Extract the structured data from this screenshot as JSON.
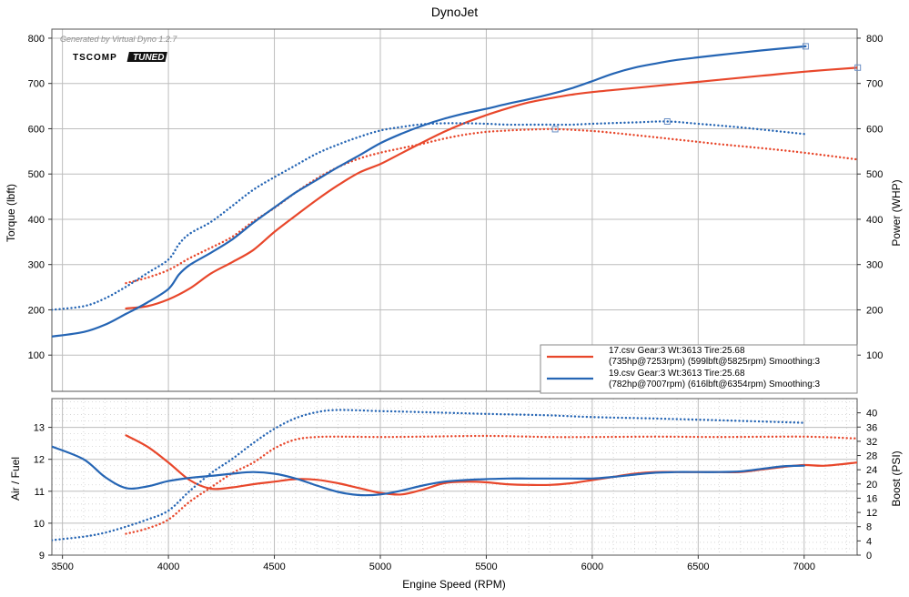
{
  "title": "DynoJet",
  "watermark": "Generated by Virtual Dyno 1.2.7",
  "logo": {
    "left_text": "TSCOMP",
    "right_text": "TUNED"
  },
  "colors": {
    "series_1": "#e8472b",
    "series_2": "#2565b4",
    "grid": "#bdbdbd",
    "minor_grid": "#cfcfcf"
  },
  "chart_data": [
    {
      "type": "line",
      "panel": "top",
      "xlabel": "Engine Speed (RPM)",
      "ylabel": "Torque (lbft)",
      "ylabel_right": "Power (WHP)",
      "xlim": [
        3450,
        7250
      ],
      "ylim": [
        20,
        820
      ],
      "x_ticks": [
        3500,
        4000,
        4500,
        5000,
        5500,
        6000,
        6500,
        7000
      ],
      "y_ticks": [
        100,
        200,
        300,
        400,
        500,
        600,
        700,
        800
      ],
      "y_ticks_right": [
        100,
        200,
        300,
        400,
        500,
        600,
        700,
        800
      ],
      "grid": true,
      "legend_position": "bottom-right",
      "legend": [
        {
          "line1": "17.csv Gear:3 Wt:3613 Tire:25.68",
          "line2": "(735hp@7253rpm) (599lbft@5825rpm) Smoothing:3",
          "color": "#e8472b"
        },
        {
          "line1": "19.csv Gear:3 Wt:3613 Tire:25.68",
          "line2": "(782hp@7007rpm) (616lbft@6354rpm) Smoothing:3",
          "color": "#2565b4"
        }
      ],
      "series": [
        {
          "file": "17.csv",
          "quantity": "Power",
          "axis": "right",
          "style": "solid",
          "color": "#e8472b",
          "x": [
            3800,
            3900,
            4000,
            4100,
            4200,
            4300,
            4400,
            4500,
            4600,
            4700,
            4800,
            4900,
            5000,
            5100,
            5200,
            5300,
            5400,
            5500,
            5600,
            5700,
            5800,
            5900,
            6000,
            6200,
            6400,
            6600,
            6800,
            7000,
            7253
          ],
          "y": [
            203,
            208,
            223,
            247,
            280,
            305,
            332,
            372,
            408,
            443,
            475,
            503,
            522,
            546,
            570,
            593,
            613,
            630,
            645,
            658,
            667,
            675,
            681,
            690,
            699,
            708,
            717,
            726,
            735
          ]
        },
        {
          "file": "17.csv",
          "quantity": "Torque",
          "axis": "left",
          "style": "dotted",
          "color": "#e8472b",
          "x": [
            3800,
            3900,
            4000,
            4100,
            4200,
            4300,
            4400,
            4500,
            4600,
            4700,
            4800,
            4900,
            5000,
            5100,
            5200,
            5300,
            5400,
            5500,
            5600,
            5700,
            5825,
            6000,
            6200,
            6400,
            6600,
            6800,
            7000,
            7253
          ],
          "y": [
            259,
            271,
            288,
            314,
            337,
            361,
            395,
            425,
            459,
            490,
            515,
            534,
            547,
            557,
            567,
            578,
            587,
            593,
            596,
            598,
            599,
            595,
            586,
            576,
            566,
            557,
            547,
            532
          ]
        },
        {
          "file": "19.csv",
          "quantity": "Power",
          "axis": "right",
          "style": "solid",
          "color": "#2565b4",
          "x": [
            3450,
            3600,
            3700,
            3800,
            3900,
            4000,
            4050,
            4100,
            4200,
            4300,
            4400,
            4500,
            4600,
            4700,
            4800,
            4900,
            5000,
            5100,
            5200,
            5300,
            5400,
            5500,
            5600,
            5700,
            5800,
            5900,
            6000,
            6100,
            6200,
            6300,
            6400,
            6600,
            6800,
            7007
          ],
          "y": [
            141,
            151,
            167,
            191,
            216,
            246,
            278,
            299,
            326,
            355,
            392,
            426,
            459,
            487,
            515,
            541,
            568,
            589,
            607,
            622,
            634,
            644,
            655,
            665,
            676,
            689,
            705,
            722,
            735,
            744,
            752,
            763,
            773,
            782
          ]
        },
        {
          "file": "19.csv",
          "quantity": "Torque",
          "axis": "left",
          "style": "dotted",
          "color": "#2565b4",
          "x": [
            3450,
            3600,
            3700,
            3800,
            3900,
            4000,
            4050,
            4100,
            4200,
            4300,
            4400,
            4500,
            4600,
            4700,
            4800,
            4900,
            5000,
            5100,
            5200,
            5300,
            5400,
            5500,
            5600,
            5700,
            5800,
            5900,
            6000,
            6200,
            6354,
            6500,
            6700,
            7007
          ],
          "y": [
            200,
            208,
            225,
            251,
            281,
            311,
            345,
            368,
            394,
            429,
            465,
            493,
            519,
            545,
            565,
            582,
            596,
            604,
            610,
            612,
            612,
            611,
            609,
            609,
            609,
            609,
            611,
            614,
            616,
            611,
            603,
            588
          ]
        }
      ],
      "markers": [
        {
          "series": "17.csv Power",
          "x": 7253,
          "y": 735
        },
        {
          "series": "17.csv Torque",
          "x": 5825,
          "y": 599
        },
        {
          "series": "19.csv Power",
          "x": 7007,
          "y": 782
        },
        {
          "series": "19.csv Torque",
          "x": 6354,
          "y": 616
        }
      ]
    },
    {
      "type": "line",
      "panel": "bottom",
      "xlabel": "Engine Speed (RPM)",
      "ylabel": "Air / Fuel",
      "ylabel_right": "Boost (PSI)",
      "xlim": [
        3450,
        7250
      ],
      "ylim": [
        9,
        13.9
      ],
      "y_right_lim": [
        0,
        44
      ],
      "x_ticks": [
        3500,
        4000,
        4500,
        5000,
        5500,
        6000,
        6500,
        7000
      ],
      "y_ticks": [
        9,
        10,
        11,
        12,
        13
      ],
      "y_ticks_right": [
        0,
        4,
        8,
        12,
        16,
        20,
        24,
        28,
        32,
        36,
        40
      ],
      "grid": true,
      "series": [
        {
          "file": "17.csv",
          "quantity": "Air / Fuel",
          "axis": "left",
          "style": "solid",
          "color": "#e8472b",
          "x": [
            3800,
            3900,
            4000,
            4100,
            4200,
            4300,
            4400,
            4500,
            4600,
            4700,
            4800,
            4900,
            5000,
            5100,
            5200,
            5300,
            5400,
            5500,
            5600,
            5700,
            5800,
            5900,
            6000,
            6100,
            6200,
            6300,
            6400,
            6500,
            6600,
            6700,
            6800,
            6900,
            7000,
            7100,
            7250
          ],
          "y": [
            12.75,
            12.4,
            11.9,
            11.35,
            11.08,
            11.12,
            11.22,
            11.3,
            11.38,
            11.36,
            11.25,
            11.1,
            10.95,
            10.9,
            11.05,
            11.25,
            11.3,
            11.28,
            11.22,
            11.2,
            11.2,
            11.25,
            11.35,
            11.45,
            11.55,
            11.6,
            11.6,
            11.6,
            11.6,
            11.6,
            11.68,
            11.76,
            11.82,
            11.8,
            11.9
          ]
        },
        {
          "file": "17.csv",
          "quantity": "Boost",
          "axis": "right",
          "style": "dotted",
          "color": "#e8472b",
          "x": [
            3800,
            3900,
            4000,
            4100,
            4200,
            4300,
            4400,
            4500,
            4600,
            4700,
            4800,
            5000,
            5200,
            5500,
            5800,
            6000,
            6300,
            6600,
            7000,
            7250
          ],
          "y": [
            6,
            7.5,
            10,
            15,
            19,
            23,
            26,
            30,
            32.5,
            33.2,
            33.3,
            33.2,
            33.3,
            33.5,
            33.2,
            33.2,
            33.3,
            33.2,
            33.3,
            32.8
          ]
        },
        {
          "file": "19.csv",
          "quantity": "Air / Fuel",
          "axis": "left",
          "style": "solid",
          "color": "#2565b4",
          "x": [
            3450,
            3600,
            3700,
            3800,
            3900,
            4000,
            4100,
            4200,
            4300,
            4400,
            4500,
            4600,
            4700,
            4800,
            4900,
            5000,
            5100,
            5200,
            5300,
            5400,
            5500,
            5600,
            5700,
            5800,
            5900,
            6000,
            6100,
            6200,
            6300,
            6400,
            6500,
            6600,
            6700,
            6800,
            6900,
            7000
          ],
          "y": [
            12.4,
            12.0,
            11.45,
            11.1,
            11.15,
            11.32,
            11.42,
            11.48,
            11.55,
            11.6,
            11.55,
            11.4,
            11.18,
            10.98,
            10.88,
            10.9,
            11.02,
            11.18,
            11.3,
            11.35,
            11.38,
            11.4,
            11.4,
            11.4,
            11.4,
            11.4,
            11.45,
            11.52,
            11.58,
            11.6,
            11.6,
            11.6,
            11.62,
            11.7,
            11.78,
            11.8
          ]
        },
        {
          "file": "19.csv",
          "quantity": "Boost",
          "axis": "right",
          "style": "dotted",
          "color": "#2565b4",
          "x": [
            3450,
            3600,
            3700,
            3800,
            3900,
            4000,
            4100,
            4200,
            4300,
            4400,
            4500,
            4600,
            4700,
            4800,
            5000,
            5200,
            5500,
            5800,
            6000,
            6300,
            6600,
            7000
          ],
          "y": [
            4.2,
            5.2,
            6.3,
            8,
            10,
            12.5,
            18,
            23,
            27,
            31.5,
            35.5,
            38.5,
            40.2,
            40.8,
            40.5,
            40.2,
            39.7,
            39.3,
            38.8,
            38.4,
            37.9,
            37.2
          ]
        }
      ]
    }
  ]
}
